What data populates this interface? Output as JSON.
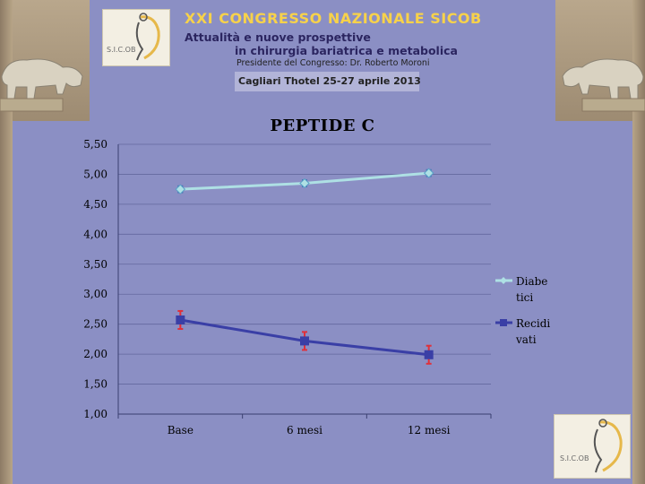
{
  "header": {
    "congress_title": "XXI CONGRESSO NAZIONALE SICOB",
    "subtitle_line1": "Attualità e nuove prospettive",
    "subtitle_line2": "in chirurgia bariatrica e metabolica",
    "president": "Presidente del Congresso: Dr. Roberto Moroni",
    "event": "Cagliari Thotel 25-27 aprile 2013",
    "logo_text": "S.I.C.OB"
  },
  "colors": {
    "background": "#8b8fc4",
    "diabetici": "#aee0e4",
    "recidivati": "#3a3fa6",
    "error_bar": "#e0303a",
    "title_yellow": "#f7d24a"
  },
  "chart_data": {
    "type": "line",
    "title": "PEPTIDE C",
    "categories": [
      "Base",
      "6 mesi",
      "12 mesi"
    ],
    "y_ticks": [
      "1,00",
      "1,50",
      "2,00",
      "2,50",
      "3,00",
      "3,50",
      "4,00",
      "4,50",
      "5,00",
      "5,50"
    ],
    "ylim": [
      1.0,
      5.5
    ],
    "grid": true,
    "legend_position": "right",
    "series": [
      {
        "name": "Diabetici",
        "legend_lines": [
          "Diabe",
          "tici"
        ],
        "marker": "diamond",
        "values": [
          4.75,
          4.85,
          5.02
        ],
        "error": [
          0.05,
          0.05,
          0.05
        ]
      },
      {
        "name": "Recidivati",
        "legend_lines": [
          "Recidi",
          "vati"
        ],
        "marker": "square",
        "values": [
          2.57,
          2.22,
          1.99
        ],
        "error": [
          0.15,
          0.15,
          0.15
        ]
      }
    ]
  }
}
